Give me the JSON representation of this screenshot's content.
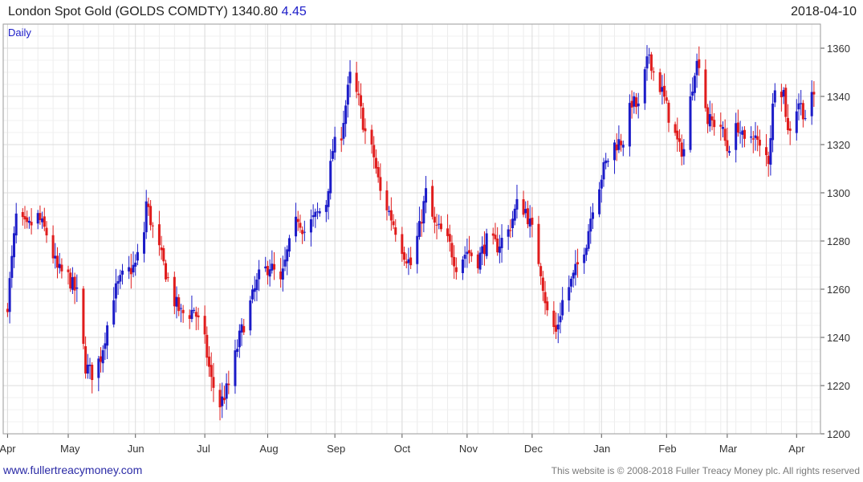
{
  "header": {
    "title": "London Spot Gold (GOLDS COMDTY)",
    "last": "1340.80",
    "change": "4.45",
    "date": "2018-04-10"
  },
  "footer": {
    "site": "www.fullertreacymoney.com",
    "copyright": "This website is © 2008-2018 Fuller Treacy Money plc. All rights reserved"
  },
  "chart_data": {
    "type": "candlestick",
    "period_label": "Daily",
    "xlabel": "",
    "ylabel": "",
    "ylim": [
      1200,
      1370
    ],
    "yticks": [
      1200,
      1220,
      1240,
      1260,
      1280,
      1300,
      1320,
      1340,
      1360
    ],
    "grid": true,
    "colors": {
      "up": "#1c1cc8",
      "down": "#e01c1c",
      "grid": "#dcdcdc",
      "axis": "#555555"
    },
    "months": [
      {
        "label": "Apr",
        "date": "2017-04-03"
      },
      {
        "label": "May",
        "date": "2017-05-01"
      },
      {
        "label": "Jun",
        "date": "2017-06-01"
      },
      {
        "label": "Jul",
        "date": "2017-07-03"
      },
      {
        "label": "Aug",
        "date": "2017-08-01"
      },
      {
        "label": "Sep",
        "date": "2017-09-01"
      },
      {
        "label": "Oct",
        "date": "2017-10-02"
      },
      {
        "label": "Nov",
        "date": "2017-11-01"
      },
      {
        "label": "Dec",
        "date": "2017-12-01"
      },
      {
        "label": "Jan",
        "date": "2018-01-02"
      },
      {
        "label": "Feb",
        "date": "2018-02-01"
      },
      {
        "label": "Mar",
        "date": "2018-03-01"
      },
      {
        "label": "Apr",
        "date": "2018-04-02"
      }
    ],
    "close_path": [
      [
        "2017-04-03",
        1254
      ],
      [
        "2017-04-07",
        1290
      ],
      [
        "2017-04-12",
        1285
      ],
      [
        "2017-04-17",
        1290
      ],
      [
        "2017-04-21",
        1283
      ],
      [
        "2017-04-26",
        1268
      ],
      [
        "2017-05-01",
        1265
      ],
      [
        "2017-05-05",
        1258
      ],
      [
        "2017-05-09",
        1228
      ],
      [
        "2017-05-12",
        1225
      ],
      [
        "2017-05-16",
        1232
      ],
      [
        "2017-05-22",
        1258
      ],
      [
        "2017-05-26",
        1265
      ],
      [
        "2017-06-01",
        1270
      ],
      [
        "2017-06-05",
        1284
      ],
      [
        "2017-06-06",
        1296
      ],
      [
        "2017-06-09",
        1285
      ],
      [
        "2017-06-14",
        1270
      ],
      [
        "2017-06-19",
        1255
      ],
      [
        "2017-06-22",
        1250
      ],
      [
        "2017-06-26",
        1250
      ],
      [
        "2017-06-28",
        1252
      ],
      [
        "2017-07-03",
        1238
      ],
      [
        "2017-07-06",
        1222
      ],
      [
        "2017-07-10",
        1212
      ],
      [
        "2017-07-14",
        1220
      ],
      [
        "2017-07-19",
        1240
      ],
      [
        "2017-07-24",
        1254
      ],
      [
        "2017-07-28",
        1265
      ],
      [
        "2017-08-02",
        1270
      ],
      [
        "2017-08-07",
        1262
      ],
      [
        "2017-08-10",
        1275
      ],
      [
        "2017-08-15",
        1290
      ],
      [
        "2017-08-18",
        1284
      ],
      [
        "2017-08-23",
        1290
      ],
      [
        "2017-08-28",
        1296
      ],
      [
        "2017-08-31",
        1318
      ],
      [
        "2017-09-04",
        1325
      ],
      [
        "2017-09-08",
        1348
      ],
      [
        "2017-09-12",
        1338
      ],
      [
        "2017-09-15",
        1325
      ],
      [
        "2017-09-19",
        1315
      ],
      [
        "2017-09-22",
        1300
      ],
      [
        "2017-09-26",
        1292
      ],
      [
        "2017-09-29",
        1285
      ],
      [
        "2017-10-03",
        1275
      ],
      [
        "2017-10-06",
        1270
      ],
      [
        "2017-10-10",
        1285
      ],
      [
        "2017-10-13",
        1300
      ],
      [
        "2017-10-17",
        1286
      ],
      [
        "2017-10-20",
        1284
      ],
      [
        "2017-10-24",
        1278
      ],
      [
        "2017-10-27",
        1270
      ],
      [
        "2017-11-01",
        1276
      ],
      [
        "2017-11-06",
        1272
      ],
      [
        "2017-11-10",
        1280
      ],
      [
        "2017-11-15",
        1278
      ],
      [
        "2017-11-20",
        1284
      ],
      [
        "2017-11-24",
        1295
      ],
      [
        "2017-11-28",
        1293
      ],
      [
        "2017-12-01",
        1284
      ],
      [
        "2017-12-05",
        1268
      ],
      [
        "2017-12-08",
        1250
      ],
      [
        "2017-12-12",
        1242
      ],
      [
        "2017-12-15",
        1255
      ],
      [
        "2017-12-20",
        1265
      ],
      [
        "2017-12-26",
        1280
      ],
      [
        "2017-12-29",
        1295
      ],
      [
        "2018-01-03",
        1310
      ],
      [
        "2018-01-08",
        1320
      ],
      [
        "2018-01-12",
        1322
      ],
      [
        "2018-01-16",
        1338
      ],
      [
        "2018-01-19",
        1335
      ],
      [
        "2018-01-24",
        1358
      ],
      [
        "2018-01-26",
        1350
      ],
      [
        "2018-01-30",
        1342
      ],
      [
        "2018-02-02",
        1332
      ],
      [
        "2018-02-07",
        1318
      ],
      [
        "2018-02-09",
        1318
      ],
      [
        "2018-02-14",
        1352
      ],
      [
        "2018-02-16",
        1355
      ],
      [
        "2018-02-20",
        1330
      ],
      [
        "2018-02-26",
        1328
      ],
      [
        "2018-03-01",
        1318
      ],
      [
        "2018-03-06",
        1328
      ],
      [
        "2018-03-09",
        1320
      ],
      [
        "2018-03-13",
        1325
      ],
      [
        "2018-03-16",
        1318
      ],
      [
        "2018-03-20",
        1314
      ],
      [
        "2018-03-23",
        1346
      ],
      [
        "2018-03-27",
        1342
      ],
      [
        "2018-03-29",
        1325
      ],
      [
        "2018-04-03",
        1338
      ],
      [
        "2018-04-06",
        1332
      ],
      [
        "2018-04-10",
        1340.8
      ]
    ]
  }
}
